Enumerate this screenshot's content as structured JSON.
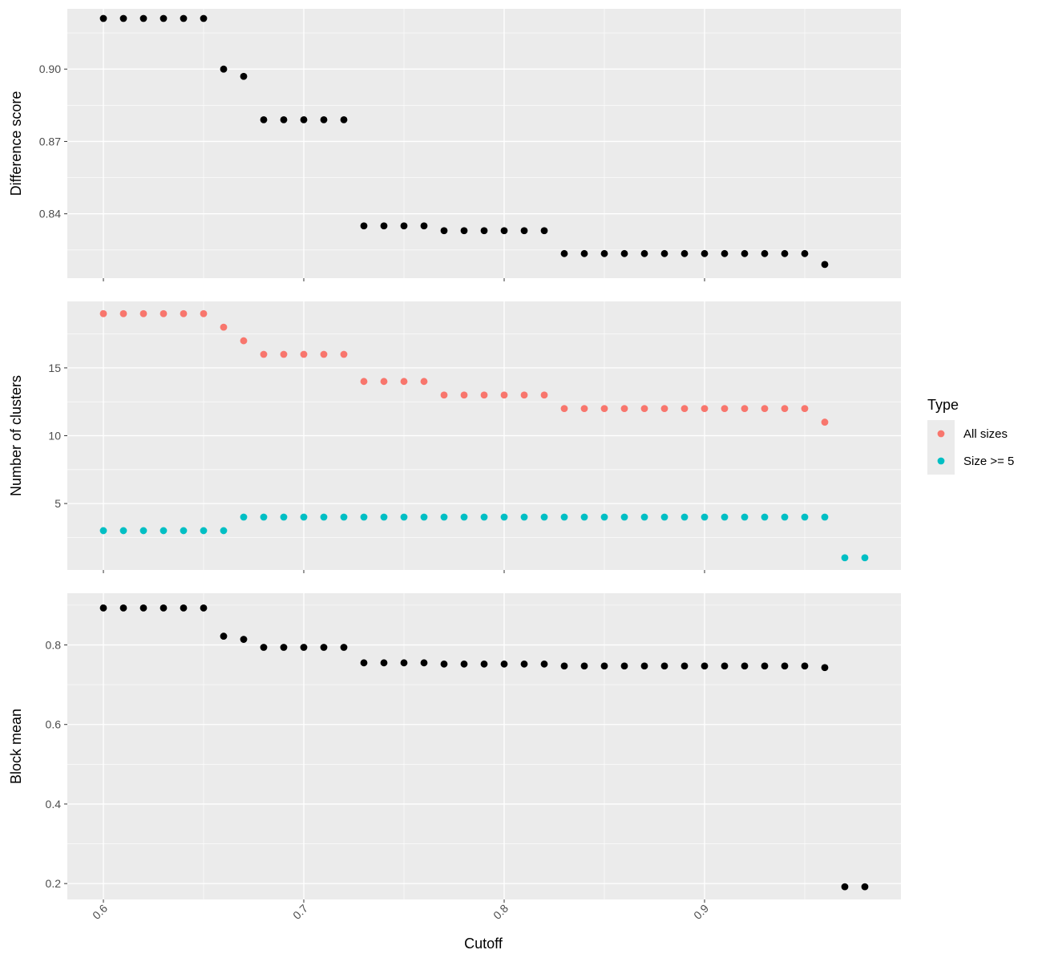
{
  "chart_data": {
    "type": "scatter",
    "xlabel": "Cutoff",
    "x_ticks": [
      0.6,
      0.7,
      0.8,
      0.9
    ],
    "x_tick_labels": [
      "0.6",
      "0.7",
      "0.8",
      "0.9"
    ],
    "xlim": [
      0.582,
      0.998
    ],
    "grid": true,
    "legend": {
      "title": "Type",
      "placement": "right",
      "entries": [
        {
          "name": "All sizes",
          "color": "#F8766D"
        },
        {
          "name": "Size >= 5",
          "color": "#00BFC4"
        }
      ]
    },
    "panels": [
      {
        "id": "difference",
        "ylabel": "Difference score",
        "ylim": [
          0.8133,
          0.925
        ],
        "y_ticks": [
          0.84,
          0.87,
          0.9
        ],
        "y_tick_labels": [
          "0.84",
          "0.87",
          "0.90"
        ],
        "series": [
          {
            "color": "#000000",
            "points": [
              [
                0.6,
                0.921
              ],
              [
                0.61,
                0.921
              ],
              [
                0.62,
                0.921
              ],
              [
                0.63,
                0.921
              ],
              [
                0.64,
                0.921
              ],
              [
                0.65,
                0.921
              ],
              [
                0.66,
                0.9
              ],
              [
                0.67,
                0.897
              ],
              [
                0.68,
                0.879
              ],
              [
                0.69,
                0.879
              ],
              [
                0.7,
                0.879
              ],
              [
                0.71,
                0.879
              ],
              [
                0.72,
                0.879
              ],
              [
                0.73,
                0.835
              ],
              [
                0.74,
                0.835
              ],
              [
                0.75,
                0.835
              ],
              [
                0.76,
                0.835
              ],
              [
                0.77,
                0.833
              ],
              [
                0.78,
                0.833
              ],
              [
                0.79,
                0.833
              ],
              [
                0.8,
                0.833
              ],
              [
                0.81,
                0.833
              ],
              [
                0.82,
                0.833
              ],
              [
                0.83,
                0.8235
              ],
              [
                0.84,
                0.8235
              ],
              [
                0.85,
                0.8235
              ],
              [
                0.86,
                0.8235
              ],
              [
                0.87,
                0.8235
              ],
              [
                0.88,
                0.8235
              ],
              [
                0.89,
                0.8235
              ],
              [
                0.9,
                0.8235
              ],
              [
                0.91,
                0.8235
              ],
              [
                0.92,
                0.8235
              ],
              [
                0.93,
                0.8235
              ],
              [
                0.94,
                0.8235
              ],
              [
                0.95,
                0.8235
              ],
              [
                0.96,
                0.819
              ]
            ]
          }
        ]
      },
      {
        "id": "clusters",
        "ylabel": "Number of clusters",
        "ylim": [
          0.1,
          19.9
        ],
        "y_ticks": [
          5,
          10,
          15
        ],
        "y_tick_labels": [
          "5",
          "10",
          "15"
        ],
        "series": [
          {
            "name": "All sizes",
            "color": "#F8766D",
            "points": [
              [
                0.6,
                19
              ],
              [
                0.61,
                19
              ],
              [
                0.62,
                19
              ],
              [
                0.63,
                19
              ],
              [
                0.64,
                19
              ],
              [
                0.65,
                19
              ],
              [
                0.66,
                18
              ],
              [
                0.67,
                17
              ],
              [
                0.68,
                16
              ],
              [
                0.69,
                16
              ],
              [
                0.7,
                16
              ],
              [
                0.71,
                16
              ],
              [
                0.72,
                16
              ],
              [
                0.73,
                14
              ],
              [
                0.74,
                14
              ],
              [
                0.75,
                14
              ],
              [
                0.76,
                14
              ],
              [
                0.77,
                13
              ],
              [
                0.78,
                13
              ],
              [
                0.79,
                13
              ],
              [
                0.8,
                13
              ],
              [
                0.81,
                13
              ],
              [
                0.82,
                13
              ],
              [
                0.83,
                12
              ],
              [
                0.84,
                12
              ],
              [
                0.85,
                12
              ],
              [
                0.86,
                12
              ],
              [
                0.87,
                12
              ],
              [
                0.88,
                12
              ],
              [
                0.89,
                12
              ],
              [
                0.9,
                12
              ],
              [
                0.91,
                12
              ],
              [
                0.92,
                12
              ],
              [
                0.93,
                12
              ],
              [
                0.94,
                12
              ],
              [
                0.95,
                12
              ],
              [
                0.96,
                11
              ]
            ]
          },
          {
            "name": "Size >= 5",
            "color": "#00BFC4",
            "points": [
              [
                0.6,
                3
              ],
              [
                0.61,
                3
              ],
              [
                0.62,
                3
              ],
              [
                0.63,
                3
              ],
              [
                0.64,
                3
              ],
              [
                0.65,
                3
              ],
              [
                0.66,
                3
              ],
              [
                0.67,
                4
              ],
              [
                0.68,
                4
              ],
              [
                0.69,
                4
              ],
              [
                0.7,
                4
              ],
              [
                0.71,
                4
              ],
              [
                0.72,
                4
              ],
              [
                0.73,
                4
              ],
              [
                0.74,
                4
              ],
              [
                0.75,
                4
              ],
              [
                0.76,
                4
              ],
              [
                0.77,
                4
              ],
              [
                0.78,
                4
              ],
              [
                0.79,
                4
              ],
              [
                0.8,
                4
              ],
              [
                0.81,
                4
              ],
              [
                0.82,
                4
              ],
              [
                0.83,
                4
              ],
              [
                0.84,
                4
              ],
              [
                0.85,
                4
              ],
              [
                0.86,
                4
              ],
              [
                0.87,
                4
              ],
              [
                0.88,
                4
              ],
              [
                0.89,
                4
              ],
              [
                0.9,
                4
              ],
              [
                0.91,
                4
              ],
              [
                0.92,
                4
              ],
              [
                0.93,
                4
              ],
              [
                0.94,
                4
              ],
              [
                0.95,
                4
              ],
              [
                0.96,
                4
              ],
              [
                0.97,
                1
              ],
              [
                0.98,
                1
              ]
            ]
          }
        ]
      },
      {
        "id": "block",
        "ylabel": "Block mean",
        "ylim": [
          0.16,
          0.93
        ],
        "y_ticks": [
          0.2,
          0.4,
          0.6,
          0.8
        ],
        "y_tick_labels": [
          "0.2",
          "0.4",
          "0.6",
          "0.8"
        ],
        "series": [
          {
            "color": "#000000",
            "points": [
              [
                0.6,
                0.893
              ],
              [
                0.61,
                0.893
              ],
              [
                0.62,
                0.893
              ],
              [
                0.63,
                0.893
              ],
              [
                0.64,
                0.893
              ],
              [
                0.65,
                0.893
              ],
              [
                0.66,
                0.822
              ],
              [
                0.67,
                0.814
              ],
              [
                0.68,
                0.794
              ],
              [
                0.69,
                0.794
              ],
              [
                0.7,
                0.794
              ],
              [
                0.71,
                0.794
              ],
              [
                0.72,
                0.794
              ],
              [
                0.73,
                0.755
              ],
              [
                0.74,
                0.755
              ],
              [
                0.75,
                0.755
              ],
              [
                0.76,
                0.755
              ],
              [
                0.77,
                0.752
              ],
              [
                0.78,
                0.752
              ],
              [
                0.79,
                0.752
              ],
              [
                0.8,
                0.752
              ],
              [
                0.81,
                0.752
              ],
              [
                0.82,
                0.752
              ],
              [
                0.83,
                0.747
              ],
              [
                0.84,
                0.747
              ],
              [
                0.85,
                0.747
              ],
              [
                0.86,
                0.747
              ],
              [
                0.87,
                0.747
              ],
              [
                0.88,
                0.747
              ],
              [
                0.89,
                0.747
              ],
              [
                0.9,
                0.747
              ],
              [
                0.91,
                0.747
              ],
              [
                0.92,
                0.747
              ],
              [
                0.93,
                0.747
              ],
              [
                0.94,
                0.747
              ],
              [
                0.95,
                0.747
              ],
              [
                0.96,
                0.743
              ],
              [
                0.97,
                0.192
              ],
              [
                0.98,
                0.192
              ]
            ]
          }
        ]
      }
    ]
  }
}
